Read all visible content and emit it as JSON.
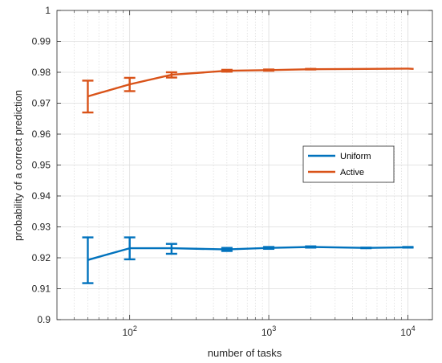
{
  "chart_data": {
    "type": "line",
    "title": "",
    "xlabel": "number of tasks",
    "ylabel": "probability of a correct prediction",
    "x_scale": "log",
    "xlim": [
      30,
      15000
    ],
    "ylim": [
      0.9,
      1.0
    ],
    "yticks": [
      "0.9",
      "0.91",
      "0.92",
      "0.93",
      "0.94",
      "0.95",
      "0.96",
      "0.97",
      "0.98",
      "0.99",
      "1"
    ],
    "xticks": [
      {
        "base": "10",
        "exp": "2",
        "value": 100
      },
      {
        "base": "10",
        "exp": "3",
        "value": 1000
      },
      {
        "base": "10",
        "exp": "4",
        "value": 10000
      }
    ],
    "grid": true,
    "minor_grid": true,
    "legend_position": "right-middle",
    "series": [
      {
        "name": "Uniform",
        "color": "#0072BD",
        "points": [
          {
            "x": 50,
            "y": 0.9193,
            "err_low": 0.9118,
            "err_high": 0.9266
          },
          {
            "x": 100,
            "y": 0.9231,
            "err_low": 0.9195,
            "err_high": 0.9266
          },
          {
            "x": 200,
            "y": 0.9231,
            "err_low": 0.9213,
            "err_high": 0.9245
          },
          {
            "x": 500,
            "y": 0.9227,
            "err_low": 0.9222,
            "err_high": 0.9232
          },
          {
            "x": 1000,
            "y": 0.9232,
            "err_low": 0.9229,
            "err_high": 0.9235
          },
          {
            "x": 2000,
            "y": 0.9235,
            "err_low": 0.9233,
            "err_high": 0.9237
          },
          {
            "x": 5000,
            "y": 0.9232,
            "err_low": 0.9231,
            "err_high": 0.9233
          },
          {
            "x": 10000,
            "y": 0.9234,
            "err_low": 0.9233,
            "err_high": 0.9235
          },
          {
            "x": 11000,
            "y": 0.9233
          }
        ]
      },
      {
        "name": "Active",
        "color": "#D95319",
        "points": [
          {
            "x": 50,
            "y": 0.9722,
            "err_low": 0.967,
            "err_high": 0.9773
          },
          {
            "x": 100,
            "y": 0.9761,
            "err_low": 0.9739,
            "err_high": 0.9782
          },
          {
            "x": 200,
            "y": 0.9792,
            "err_low": 0.9783,
            "err_high": 0.98
          },
          {
            "x": 500,
            "y": 0.9805,
            "err_low": 0.9802,
            "err_high": 0.9808
          },
          {
            "x": 1000,
            "y": 0.9807,
            "err_low": 0.9805,
            "err_high": 0.9809
          },
          {
            "x": 2000,
            "y": 0.981,
            "err_low": 0.9809,
            "err_high": 0.9811
          },
          {
            "x": 5000,
            "y": 0.9811
          },
          {
            "x": 10000,
            "y": 0.9812
          },
          {
            "x": 11000,
            "y": 0.9811
          }
        ]
      }
    ]
  }
}
